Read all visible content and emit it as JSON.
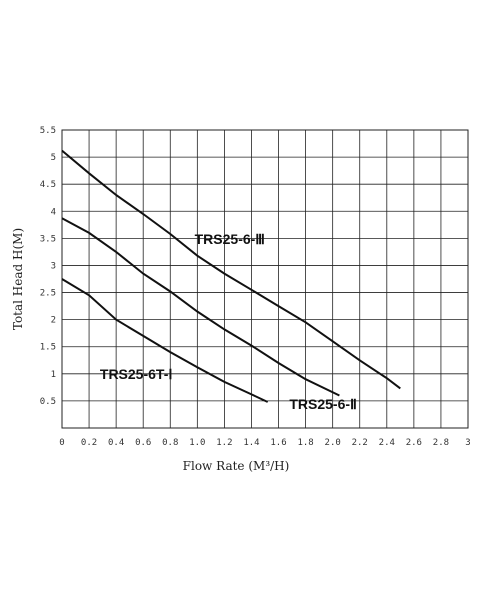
{
  "chart_data": {
    "type": "line",
    "title": "",
    "xlabel": "Flow Rate (M³/H)",
    "ylabel": "Total Head H(M)",
    "xlim": [
      0,
      3
    ],
    "ylim": [
      0,
      5.5
    ],
    "x_ticks": [
      "0",
      "0.2",
      "0.4",
      "0.6",
      "0.8",
      "1.0",
      "1.2",
      "1.4",
      "1.6",
      "1.8",
      "2.0",
      "2.2",
      "2.4",
      "2.6",
      "2.8",
      "3"
    ],
    "y_ticks": [
      "0.5",
      "1",
      "1.5",
      "2",
      "2.5",
      "3",
      "3.5",
      "4",
      "4.5",
      "5",
      "5.5"
    ],
    "grid": true,
    "series": [
      {
        "name": "TRS25-6-Ⅲ",
        "x": [
          0,
          0.2,
          0.4,
          0.6,
          0.8,
          1.0,
          1.2,
          1.4,
          1.6,
          1.8,
          2.0,
          2.2,
          2.4,
          2.5
        ],
        "y": [
          5.12,
          4.7,
          4.3,
          3.95,
          3.58,
          3.18,
          2.85,
          2.55,
          2.25,
          1.95,
          1.6,
          1.25,
          0.92,
          0.73
        ]
      },
      {
        "name": "TRS25-6-Ⅱ",
        "x": [
          0,
          0.2,
          0.4,
          0.6,
          0.8,
          1.0,
          1.2,
          1.4,
          1.6,
          1.8,
          2.05
        ],
        "y": [
          3.87,
          3.6,
          3.25,
          2.85,
          2.52,
          2.15,
          1.82,
          1.52,
          1.2,
          0.9,
          0.6
        ]
      },
      {
        "name": "TRS25-6T-Ⅰ",
        "x": [
          0,
          0.2,
          0.4,
          0.6,
          0.8,
          1.0,
          1.2,
          1.4,
          1.52
        ],
        "y": [
          2.75,
          2.45,
          2.0,
          1.7,
          1.4,
          1.12,
          0.85,
          0.62,
          0.48
        ]
      }
    ],
    "annotations": [
      {
        "text": "TRS25-6-Ⅲ",
        "x": 0.98,
        "y": 3.4
      },
      {
        "text": "TRS25-6-Ⅱ",
        "x": 1.68,
        "y": 0.35
      },
      {
        "text": "TRS25-6T-Ⅰ",
        "x": 0.28,
        "y": 0.9
      }
    ]
  }
}
